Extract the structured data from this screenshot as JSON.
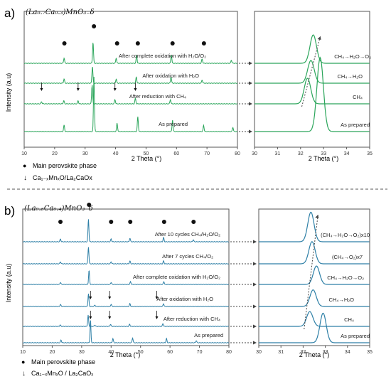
{
  "panels": [
    {
      "letter": "a)",
      "formula": "(La₀.₇Ca₀.₃)MnO₃₋δ",
      "x_axis": {
        "label": "2 Theta (°)",
        "ticks": [
          "10",
          "20",
          "30",
          "40",
          "50",
          "60",
          "70",
          "80"
        ]
      },
      "zoom_axis": {
        "label": "2 Theta (°)",
        "ticks": [
          "30",
          "31",
          "32",
          "33",
          "34",
          "35"
        ]
      },
      "ylabel": "Intensity (a.u)",
      "traces": [
        "After complete oxidation with H₂O/O₂",
        "After oxidation with H₂O",
        "After reduction with CH₄",
        "As prepared"
      ],
      "zoom_traces": [
        "CH₄→H₂O→O₂",
        "CH₄→H₂O",
        "CH₄",
        "As prepared"
      ],
      "legend": [
        {
          "symbol": "●",
          "text": "Main perovskite phase"
        },
        {
          "symbol": "↓",
          "text": "Ca₁₋ₓMnₓO/La₂CaOx"
        }
      ]
    },
    {
      "letter": "b)",
      "formula": "(La₀.₆Ca₀.₄)MnO₃₋δ",
      "x_axis": {
        "label": "2 Theta (°)",
        "ticks": [
          "10",
          "20",
          "30",
          "40",
          "50",
          "60",
          "70",
          "80"
        ]
      },
      "zoom_axis": {
        "label": "2 Theta (°)",
        "ticks": [
          "30",
          "31",
          "32",
          "33",
          "34",
          "35"
        ]
      },
      "ylabel": "Intensity (a.u)",
      "traces": [
        "After 10 cycles CH₄/H₂O/O₂",
        "After 7 cycles CH₄/O₂",
        "After complete oxidation with H₂O/O₂",
        "After oxidation with H₂O",
        "After reduction with CH₄",
        "As prepared"
      ],
      "zoom_traces": [
        "(CH₄→H₂O→O₂)x10",
        "(CH₄→O₂)x7",
        "CH₄→H₂O→O₂",
        "CH₄→H₂O",
        "CH₄",
        "As prepared"
      ],
      "legend": [
        {
          "symbol": "●",
          "text": "Main perovskite phase"
        },
        {
          "symbol": "↓",
          "text": "Ca₁₋ₓMnₓO / La₂CaOₓ"
        }
      ]
    }
  ],
  "colors": {
    "panel_a": "#2aa55a",
    "panel_b": "#2d7fa6",
    "axis": "#555555"
  },
  "chart_data": [
    {
      "type": "line",
      "title": "",
      "xlabel": "2 Theta (°)",
      "ylabel": "Intensity (a.u)",
      "xlim": [
        10,
        80
      ],
      "series": [
        {
          "name": "After complete oxidation with H₂O/O₂",
          "peaks": [
            [
              23.1,
              0.25
            ],
            [
              32.6,
              1.0
            ],
            [
              40.2,
              0.25
            ],
            [
              46.9,
              0.4
            ],
            [
              58.3,
              0.4
            ],
            [
              68.4,
              0.2
            ],
            [
              78.0,
              0.15
            ]
          ]
        },
        {
          "name": "After oxidation with H₂O",
          "peaks": [
            [
              23.1,
              0.2
            ],
            [
              32.4,
              0.8
            ],
            [
              40.2,
              0.2
            ],
            [
              46.8,
              0.3
            ],
            [
              58.2,
              0.3
            ],
            [
              68.4,
              0.15
            ]
          ]
        },
        {
          "name": "After reduction with CH₄",
          "peaks": [
            [
              15.7,
              0.1
            ],
            [
              23.0,
              0.15
            ],
            [
              27.7,
              0.15
            ],
            [
              32.3,
              0.9
            ],
            [
              39.8,
              0.2
            ],
            [
              46.5,
              0.25
            ],
            [
              58.0,
              0.2
            ]
          ]
        },
        {
          "name": "As prepared",
          "peaks": [
            [
              23.1,
              0.3
            ],
            [
              32.9,
              2.6
            ],
            [
              40.5,
              0.4
            ],
            [
              47.3,
              0.7
            ],
            [
              58.7,
              0.55
            ],
            [
              68.9,
              0.3
            ],
            [
              78.5,
              0.2
            ]
          ]
        }
      ],
      "markers": {
        "main_perovskite_phase_2theta": [
          23.2,
          32.9,
          40.5,
          47.3,
          58.7,
          69.0
        ],
        "secondary_phase_2theta": [
          15.7,
          27.7,
          39.8,
          46.5
        ]
      },
      "zoom": {
        "xlim": [
          30,
          35
        ],
        "peak_center_2theta": [
          32.55,
          32.45,
          32.3,
          32.85
        ],
        "series_names": [
          "CH₄→H₂O→O₂",
          "CH₄→H₂O",
          "CH₄",
          "As prepared"
        ]
      }
    },
    {
      "type": "line",
      "title": "",
      "xlabel": "2 Theta (°)",
      "ylabel": "Intensity (a.u)",
      "xlim": [
        10,
        80
      ],
      "series": [
        {
          "name": "After 10 cycles CH₄/H₂O/O₂",
          "peaks": [
            [
              22.8,
              0.2
            ],
            [
              32.3,
              1.6
            ],
            [
              40.0,
              0.2
            ],
            [
              46.4,
              0.25
            ],
            [
              57.8,
              0.3
            ],
            [
              67.9,
              0.15
            ]
          ]
        },
        {
          "name": "After 7 cycles CH₄/O₂",
          "peaks": [
            [
              22.8,
              0.15
            ],
            [
              32.3,
              1.2
            ],
            [
              40.0,
              0.15
            ],
            [
              46.4,
              0.2
            ],
            [
              57.8,
              0.2
            ]
          ]
        },
        {
          "name": "After complete oxidation with H₂O/O₂",
          "peaks": [
            [
              22.8,
              0.15
            ],
            [
              32.5,
              1.0
            ],
            [
              40.0,
              0.15
            ],
            [
              46.6,
              0.2
            ],
            [
              57.9,
              0.2
            ]
          ]
        },
        {
          "name": "After oxidation with H₂O",
          "peaks": [
            [
              22.8,
              0.15
            ],
            [
              32.3,
              0.9
            ],
            [
              34.5,
              0.1
            ],
            [
              40.0,
              0.15
            ],
            [
              46.4,
              0.2
            ],
            [
              57.8,
              0.2
            ]
          ]
        },
        {
          "name": "After reduction with CH₄",
          "peaks": [
            [
              22.7,
              0.1
            ],
            [
              32.2,
              0.8
            ],
            [
              34.5,
              0.1
            ],
            [
              39.8,
              0.15
            ],
            [
              46.3,
              0.15
            ],
            [
              57.6,
              0.2
            ]
          ]
        },
        {
          "name": "As prepared",
          "peaks": [
            [
              23.0,
              0.2
            ],
            [
              33.0,
              1.6
            ],
            [
              40.6,
              0.3
            ],
            [
              47.3,
              0.35
            ],
            [
              58.8,
              0.3
            ],
            [
              68.9,
              0.15
            ]
          ]
        }
      ],
      "markers": {
        "main_perovskite_phase_2theta": [
          22.8,
          32.5,
          40.0,
          46.5,
          58.0,
          68.0
        ],
        "secondary_phase_2theta": [
          33.0,
          39.5,
          55.5
        ]
      },
      "zoom": {
        "xlim": [
          30,
          35
        ],
        "peak_center_2theta": [
          32.35,
          32.4,
          32.6,
          32.45,
          32.3,
          32.9
        ],
        "series_names": [
          "(CH₄→H₂O→O₂)x10",
          "(CH₄→O₂)x7",
          "CH₄→H₂O→O₂",
          "CH₄→H₂O",
          "CH₄",
          "As prepared"
        ]
      }
    }
  ]
}
